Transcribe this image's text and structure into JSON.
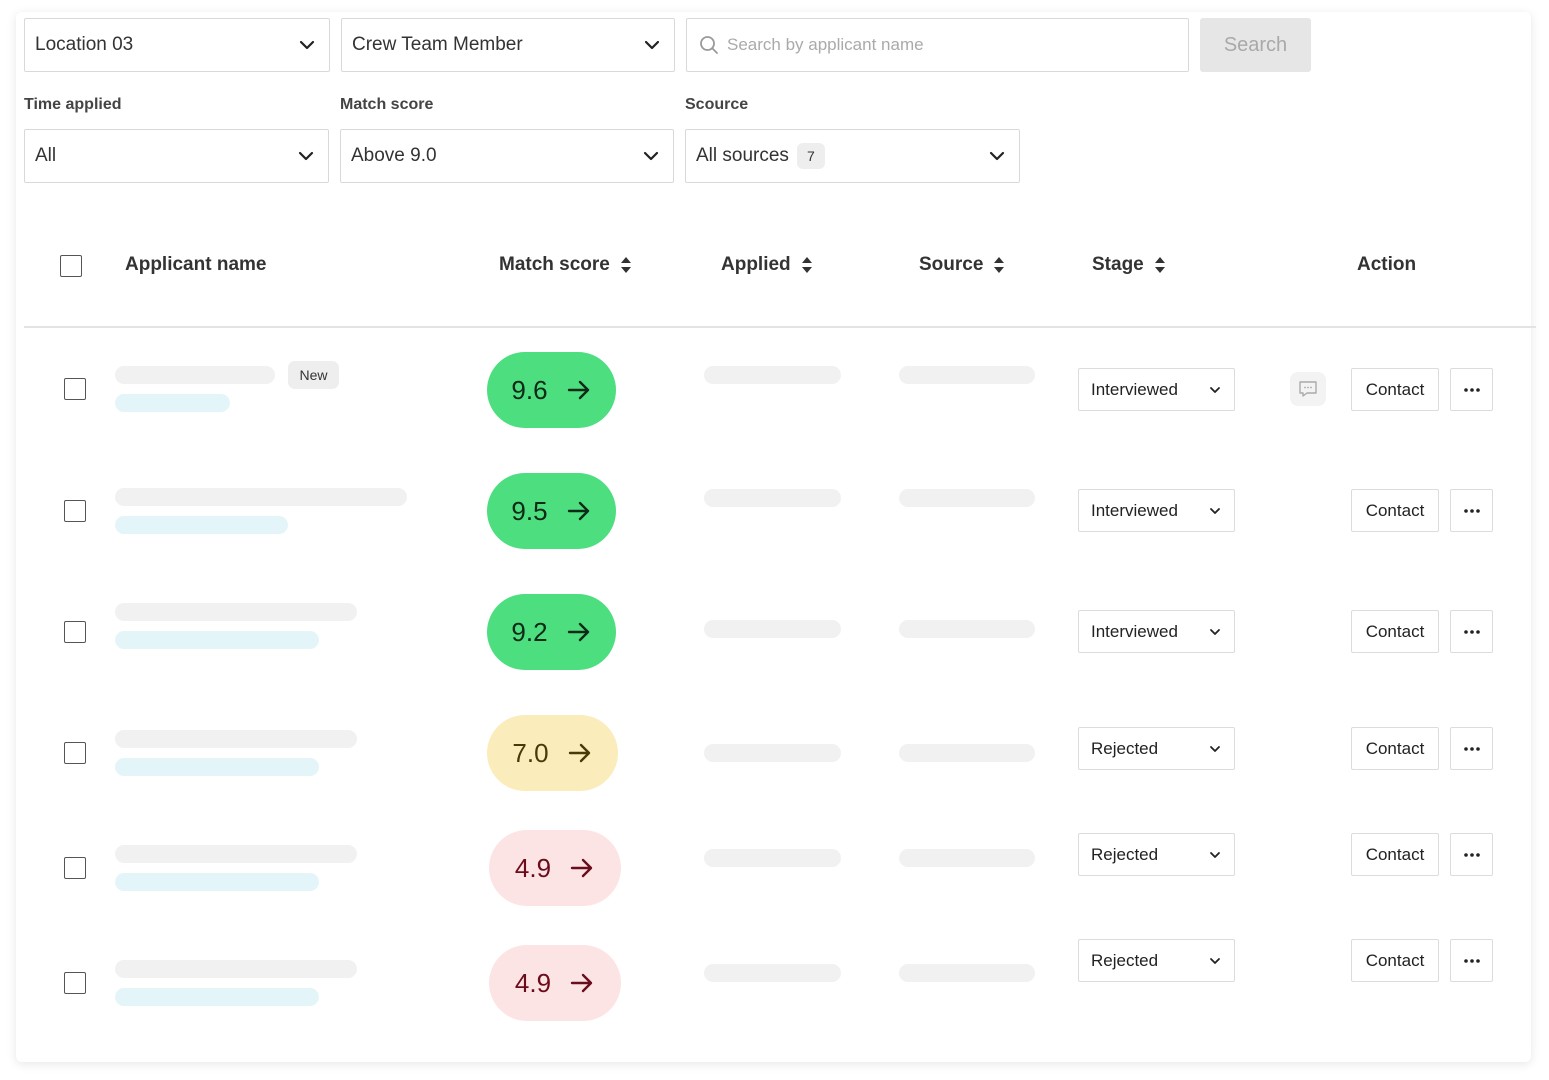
{
  "filters": {
    "location": "Location 03",
    "role": "Crew Team Member",
    "search_placeholder": "Search by applicant name",
    "search_button": "Search",
    "time_applied": {
      "label": "Time applied",
      "value": "All"
    },
    "match_score": {
      "label": "Match score",
      "value": "Above 9.0"
    },
    "source": {
      "label": "Scource",
      "value": "All sources",
      "count": "7"
    }
  },
  "table": {
    "columns": {
      "name": "Applicant name",
      "match_score": "Match score",
      "applied": "Applied",
      "source": "Source",
      "stage": "Stage",
      "action": "Action"
    },
    "rows": [
      {
        "score": "9.6",
        "level": "green",
        "stage": "Interviewed",
        "badge": "New",
        "has_comment": true,
        "contact": "Contact",
        "name_skeleton_fraction": 0.55
      },
      {
        "score": "9.5",
        "level": "green",
        "stage": "Interviewed",
        "contact": "Contact"
      },
      {
        "score": "9.2",
        "level": "green",
        "stage": "Interviewed",
        "contact": "Contact"
      },
      {
        "score": "7.0",
        "level": "yellow",
        "stage": "Rejected",
        "contact": "Contact"
      },
      {
        "score": "4.9",
        "level": "red",
        "stage": "Rejected",
        "contact": "Contact"
      },
      {
        "score": "4.9",
        "level": "red",
        "stage": "Rejected",
        "contact": "Contact"
      }
    ]
  },
  "colors": {
    "score_green": "#4dde80",
    "score_yellow": "#fbecbb",
    "score_red": "#fde4e4",
    "skeleton_gray": "#f1f1f1",
    "skeleton_blue": "#e4f5f9"
  },
  "icons": {
    "dropdown": "chevron-down-icon",
    "search": "search-icon",
    "sort": "sort-icon",
    "score_arrow": "arrow-right-icon",
    "comment": "comment-icon",
    "more": "more-horizontal-icon"
  }
}
